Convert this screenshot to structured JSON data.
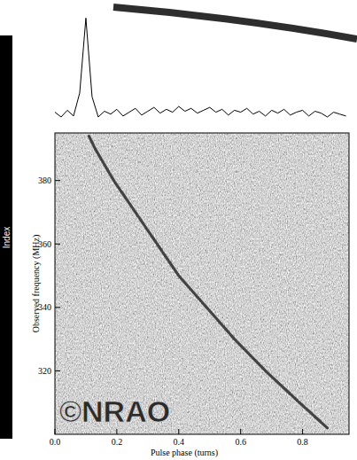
{
  "chart_data": [
    {
      "type": "line",
      "x": [
        0.0,
        0.02,
        0.04,
        0.06,
        0.08,
        0.1,
        0.12,
        0.14,
        0.16,
        0.18,
        0.2,
        0.22,
        0.24,
        0.26,
        0.28,
        0.3,
        0.32,
        0.34,
        0.36,
        0.38,
        0.4,
        0.42,
        0.44,
        0.46,
        0.48,
        0.5,
        0.52,
        0.54,
        0.56,
        0.58,
        0.6,
        0.62,
        0.64,
        0.66,
        0.68,
        0.7,
        0.72,
        0.74,
        0.76,
        0.78,
        0.8,
        0.82,
        0.84,
        0.86,
        0.88,
        0.9,
        0.92,
        0.94
      ],
      "series": [
        {
          "color": "#000000",
          "values": [
            0.02,
            -0.03,
            0.04,
            -0.02,
            0.22,
            1.0,
            0.18,
            -0.03,
            0.03,
            0.0,
            0.05,
            -0.02,
            0.02,
            0.06,
            -0.01,
            0.03,
            0.07,
            0.01,
            0.05,
            0.02,
            0.08,
            0.03,
            0.06,
            0.01,
            0.04,
            0.07,
            0.02,
            0.05,
            -0.01,
            0.04,
            0.02,
            0.06,
            0.0,
            0.03,
            -0.02,
            0.04,
            0.01,
            0.05,
            -0.01,
            0.02,
            0.04,
            -0.02,
            0.03,
            0.01,
            -0.03,
            0.02,
            0.0,
            -0.02
          ]
        }
      ],
      "xlim": [
        0,
        0.95
      ],
      "ylim": [
        -0.15,
        1.05
      ],
      "tick_labels": false
    },
    {
      "type": "line",
      "x_label": "Pulse phase (turns)",
      "y_label": "Observed frequency (MHz)",
      "x": [
        0.11,
        0.13,
        0.19,
        0.26,
        0.33,
        0.4,
        0.49,
        0.58,
        0.68,
        0.79,
        0.88
      ],
      "series": [
        {
          "color": "#2a2a2a",
          "values": [
            394,
            390,
            380,
            370,
            360,
            350,
            340,
            330,
            320,
            310,
            302
          ]
        }
      ],
      "xlim": [
        0,
        0.95
      ],
      "ylim": [
        300,
        395
      ],
      "xticks": [
        {
          "value": 0,
          "label": "0.0"
        },
        0.2,
        0.4,
        0.6,
        0.8
      ],
      "yticks": [
        320,
        340,
        360,
        380
      ]
    }
  ],
  "sidebar_label": "Index",
  "watermark": "©NRAO"
}
